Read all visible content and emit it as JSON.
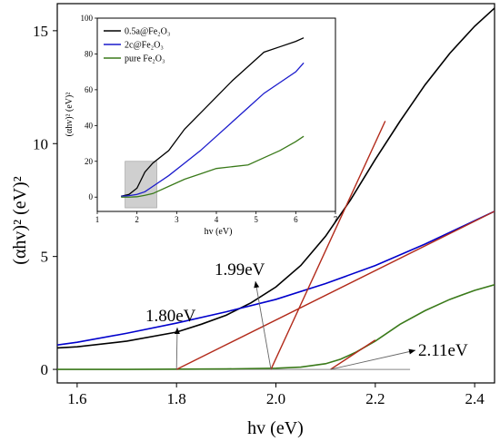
{
  "chart_data": [
    {
      "type": "line",
      "xlabel": "hv (eV)",
      "ylabel": "(αhv)² (eV)²",
      "xlim": [
        1.56,
        2.44
      ],
      "ylim": [
        -0.6,
        16.2
      ],
      "xticks": [
        "1.6",
        "1.8",
        "2.0",
        "2.2",
        "2.4"
      ],
      "xtick_values": [
        1.6,
        1.8,
        2.0,
        2.2,
        2.4
      ],
      "yticks": [
        "0",
        "5",
        "10",
        "15"
      ],
      "ytick_values": [
        0,
        5,
        10,
        15
      ],
      "series": [
        {
          "color": "#000000",
          "x": [
            1.56,
            1.6,
            1.7,
            1.8,
            1.85,
            1.9,
            1.95,
            2.0,
            2.05,
            2.1,
            2.15,
            2.2,
            2.25,
            2.3,
            2.35,
            2.4,
            2.44
          ],
          "y": [
            0.95,
            1.0,
            1.25,
            1.65,
            2.0,
            2.4,
            2.95,
            3.65,
            4.6,
            5.9,
            7.5,
            9.3,
            11.0,
            12.6,
            14.0,
            15.2,
            16.0
          ]
        },
        {
          "color": "#0000cc",
          "x": [
            1.56,
            1.6,
            1.7,
            1.8,
            1.9,
            2.0,
            2.1,
            2.2,
            2.3,
            2.44
          ],
          "y": [
            1.08,
            1.2,
            1.6,
            2.05,
            2.55,
            3.1,
            3.8,
            4.6,
            5.55,
            7.0
          ]
        },
        {
          "color": "#3a7a1a",
          "x": [
            1.56,
            1.7,
            1.9,
            2.0,
            2.05,
            2.1,
            2.13,
            2.16,
            2.2,
            2.25,
            2.3,
            2.35,
            2.4,
            2.44
          ],
          "y": [
            0.0,
            0.0,
            0.02,
            0.05,
            0.1,
            0.25,
            0.45,
            0.75,
            1.25,
            2.0,
            2.6,
            3.1,
            3.5,
            3.75
          ]
        }
      ],
      "tangents": [
        {
          "color": "#b22a1a",
          "x": [
            1.8,
            2.44
          ],
          "y": [
            0.0,
            7.0
          ]
        },
        {
          "color": "#b22a1a",
          "x": [
            1.99,
            2.22
          ],
          "y": [
            0.0,
            11.0
          ]
        },
        {
          "color": "#b22a1a",
          "x": [
            2.11,
            2.2
          ],
          "y": [
            0.0,
            1.3
          ]
        }
      ],
      "baseline": {
        "x": [
          1.56,
          2.27
        ],
        "y": [
          0,
          0
        ]
      },
      "annotations": [
        {
          "text": "1.80eV",
          "x": 1.8
        },
        {
          "text": "1.99eV",
          "x": 1.99
        },
        {
          "text": "2.11eV",
          "x": 2.11
        }
      ]
    },
    {
      "type": "line",
      "xlabel": "hv (eV)",
      "ylabel": "(αhv)² (eV)²",
      "xlim": [
        1,
        7
      ],
      "ylim": [
        -8,
        100
      ],
      "xticks": [
        "1",
        "2",
        "3",
        "4",
        "5",
        "6",
        "7"
      ],
      "xtick_values": [
        1,
        2,
        3,
        4,
        5,
        6,
        7
      ],
      "yticks": [
        "0",
        "20",
        "40",
        "60",
        "80",
        "100"
      ],
      "ytick_values": [
        0,
        20,
        40,
        60,
        80,
        100
      ],
      "highlight_box": {
        "x": [
          1.7,
          2.5
        ],
        "y": [
          -6,
          20
        ]
      },
      "legend_position": "top-left",
      "series": [
        {
          "name": "0.5a@Fe₂O₃",
          "color": "#000000",
          "x": [
            1.6,
            1.8,
            2.0,
            2.2,
            2.4,
            2.8,
            3.2,
            3.6,
            4.0,
            4.4,
            4.8,
            5.2,
            5.6,
            6.0,
            6.2
          ],
          "y": [
            0.5,
            1.5,
            5,
            14,
            19,
            26,
            38,
            47,
            56,
            65,
            73,
            81,
            84,
            87,
            89
          ]
        },
        {
          "name": "2c@Fe₂O₃",
          "color": "#1a1acc",
          "x": [
            1.6,
            1.8,
            2.0,
            2.2,
            2.4,
            2.8,
            3.2,
            3.6,
            4.0,
            4.4,
            4.8,
            5.2,
            5.6,
            6.0,
            6.2
          ],
          "y": [
            0.5,
            0.8,
            1.5,
            3,
            6,
            12,
            19,
            26,
            34,
            42,
            50,
            58,
            64,
            70,
            75
          ]
        },
        {
          "name": "pure Fe₂O₃",
          "color": "#3a7a1a",
          "x": [
            1.6,
            1.8,
            2.0,
            2.2,
            2.4,
            2.8,
            3.2,
            3.6,
            4.0,
            4.4,
            4.8,
            5.2,
            5.6,
            6.0,
            6.2
          ],
          "y": [
            0,
            0,
            0.2,
            1,
            2,
            6,
            10,
            13,
            16,
            17,
            18,
            22,
            26,
            31,
            34
          ]
        }
      ]
    }
  ]
}
